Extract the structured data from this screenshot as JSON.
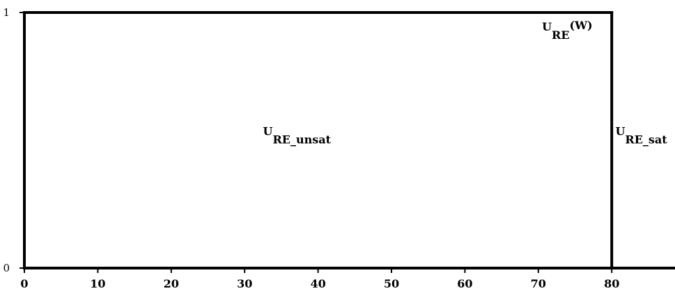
{
  "chart_data": {
    "type": "line",
    "title": "",
    "xlabel": "",
    "ylabel": "",
    "xlim": [
      0,
      90
    ],
    "ylim": [
      0,
      1
    ],
    "grid": false,
    "x_ticks": [
      0,
      10,
      20,
      30,
      40,
      50,
      60,
      70,
      80
    ],
    "x_tick_labels": [
      "0",
      "10",
      "20",
      "30",
      "40",
      "50",
      "60",
      "70",
      "80"
    ],
    "y_ticks": [
      0,
      1
    ],
    "y_tick_labels": [
      "0",
      "1"
    ],
    "series": [
      {
        "x": [
          0,
          0,
          80,
          80,
          90
        ],
        "y": [
          0,
          1,
          1,
          0,
          0
        ],
        "color": "#000000"
      }
    ],
    "annotations": [
      {
        "main": "U",
        "sub": "RE_unsat",
        "sup": "",
        "x": 32.5,
        "y": 0.52
      },
      {
        "main": "U",
        "sub": "RE",
        "sup": "(W)",
        "x": 70.5,
        "y": 0.93
      },
      {
        "main": "U",
        "sub": "RE_sat",
        "sup": "",
        "x": 80.5,
        "y": 0.52
      }
    ]
  }
}
